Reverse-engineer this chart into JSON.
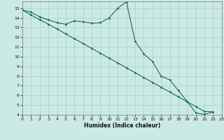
{
  "xlabel": "Humidex (Indice chaleur)",
  "bg_color": "#cceae4",
  "grid_color": "#aad4cc",
  "line_color": "#1a6b5a",
  "x_line1": [
    0,
    1,
    2,
    3,
    4,
    5,
    6,
    7,
    8,
    9,
    10,
    11,
    12,
    13,
    14,
    15,
    16,
    17,
    18,
    19,
    20,
    21,
    22
  ],
  "y_line1": [
    14.8,
    14.6,
    14.1,
    13.8,
    13.5,
    13.35,
    13.7,
    13.6,
    13.45,
    13.5,
    14.0,
    15.0,
    15.65,
    11.6,
    10.3,
    9.5,
    8.0,
    7.6,
    6.5,
    5.4,
    4.2,
    4.05,
    4.3
  ],
  "x_line2": [
    0,
    1,
    2,
    3,
    4,
    5,
    6,
    7,
    8,
    9,
    10,
    11,
    12,
    13,
    14,
    15,
    16,
    17,
    18,
    19,
    20,
    21,
    22
  ],
  "y_line2": [
    14.8,
    14.3,
    13.8,
    13.35,
    12.85,
    12.35,
    11.85,
    11.35,
    10.85,
    10.35,
    9.85,
    9.35,
    8.85,
    8.35,
    7.85,
    7.35,
    6.85,
    6.35,
    5.85,
    5.35,
    4.85,
    4.35,
    4.3
  ],
  "ylim": [
    4,
    15.7
  ],
  "xlim": [
    0,
    22
  ],
  "yticks": [
    4,
    5,
    6,
    7,
    8,
    9,
    10,
    11,
    12,
    13,
    14,
    15
  ],
  "xticks": [
    0,
    1,
    2,
    3,
    4,
    5,
    6,
    7,
    8,
    9,
    10,
    11,
    12,
    13,
    14,
    15,
    16,
    17,
    18,
    19,
    20,
    21,
    22,
    23
  ]
}
